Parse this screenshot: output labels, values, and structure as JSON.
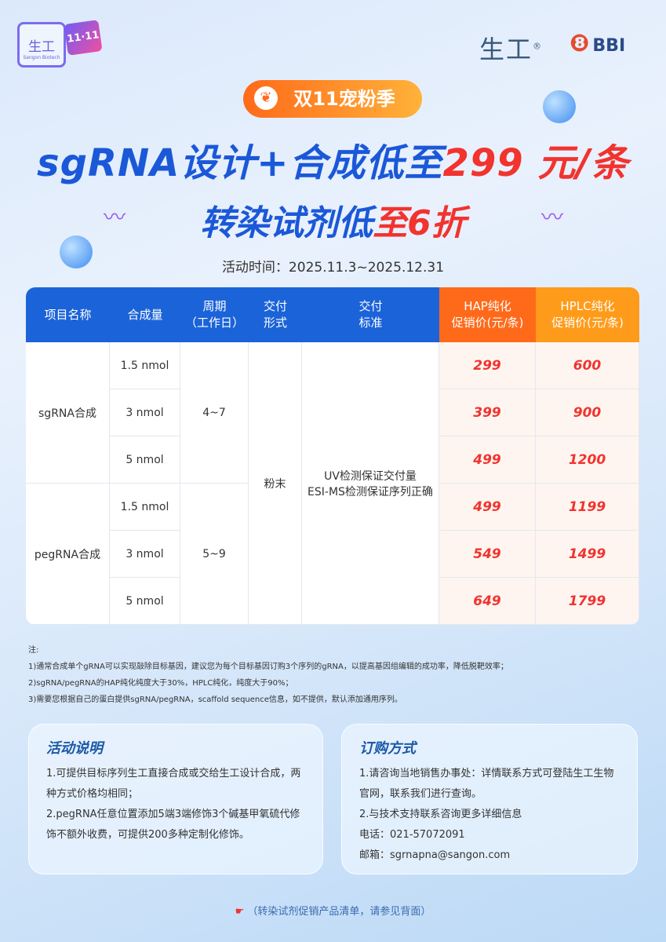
{
  "logo": {
    "bag_text": "生工",
    "bag_sub": "Sangon Biotech",
    "gift": "11·11"
  },
  "brand": {
    "cn": "生工",
    "reg": "®",
    "bbi": "BBI"
  },
  "badge": "双11宠粉季",
  "headline": {
    "part1": "sgRNA设计+合成低至",
    "part2": "299 元/条"
  },
  "subheadline": {
    "part1": "转染试剂低",
    "part2": "至6折"
  },
  "period": "活动时间：2025.11.3~2025.12.31",
  "table": {
    "headers": [
      "项目名称",
      "合成量",
      "周期\n（工作日）",
      "交付\n形式",
      "交付\n标准",
      "HAP纯化\n促销价(元/条)",
      "HPLC纯化\n促销价(元/条)"
    ],
    "groups": [
      {
        "name": "sgRNA合成",
        "cycle": "4~7",
        "rows": [
          {
            "qty": "1.5 nmol",
            "hap": "299",
            "hplc": "600"
          },
          {
            "qty": "3 nmol",
            "hap": "399",
            "hplc": "900"
          },
          {
            "qty": "5 nmol",
            "hap": "499",
            "hplc": "1200"
          }
        ]
      },
      {
        "name": "pegRNA合成",
        "cycle": "5~9",
        "rows": [
          {
            "qty": "1.5 nmol",
            "hap": "499",
            "hplc": "1199"
          },
          {
            "qty": "3 nmol",
            "hap": "549",
            "hplc": "1499"
          },
          {
            "qty": "5 nmol",
            "hap": "649",
            "hplc": "1799"
          }
        ]
      }
    ],
    "form": "粉末",
    "standard": "UV检测保证交付量\nESI-MS检测保证序列正确"
  },
  "notes": [
    "注:",
    "1)通常合成单个gRNA可以实现敲除目标基因，建议您为每个目标基因订购3个序列的gRNA，以提高基因组编辑的成功率，降低脱靶效率；",
    "2)sgRNA/pegRNA的HAP纯化纯度大于30%，HPLC纯化，纯度大于90%；",
    "3)需要您根据自己的蛋白提供sgRNA/pegRNA，scaffold sequence信息，如不提供，默认添加通用序列。"
  ],
  "activity": {
    "title": "活动说明",
    "lines": [
      "1.可提供目标序列生工直接合成或交给生工设计合成，两种方式价格均相同；",
      "2.pegRNA任意位置添加5端3端修饰3个碱基甲氧硫代修饰不额外收费，可提供200多种定制化修饰。"
    ]
  },
  "order": {
    "title": "订购方式",
    "lines": [
      "1.请咨询当地销售办事处：详情联系方式可登陆生工生物官网，联系我们进行查询。",
      "2.与技术支持联系咨询更多详细信息",
      "电话：021-57072091",
      "邮箱：sgrnapna@sangon.com"
    ]
  },
  "footer": "（转染试剂促销产品清单，请参见背面）"
}
